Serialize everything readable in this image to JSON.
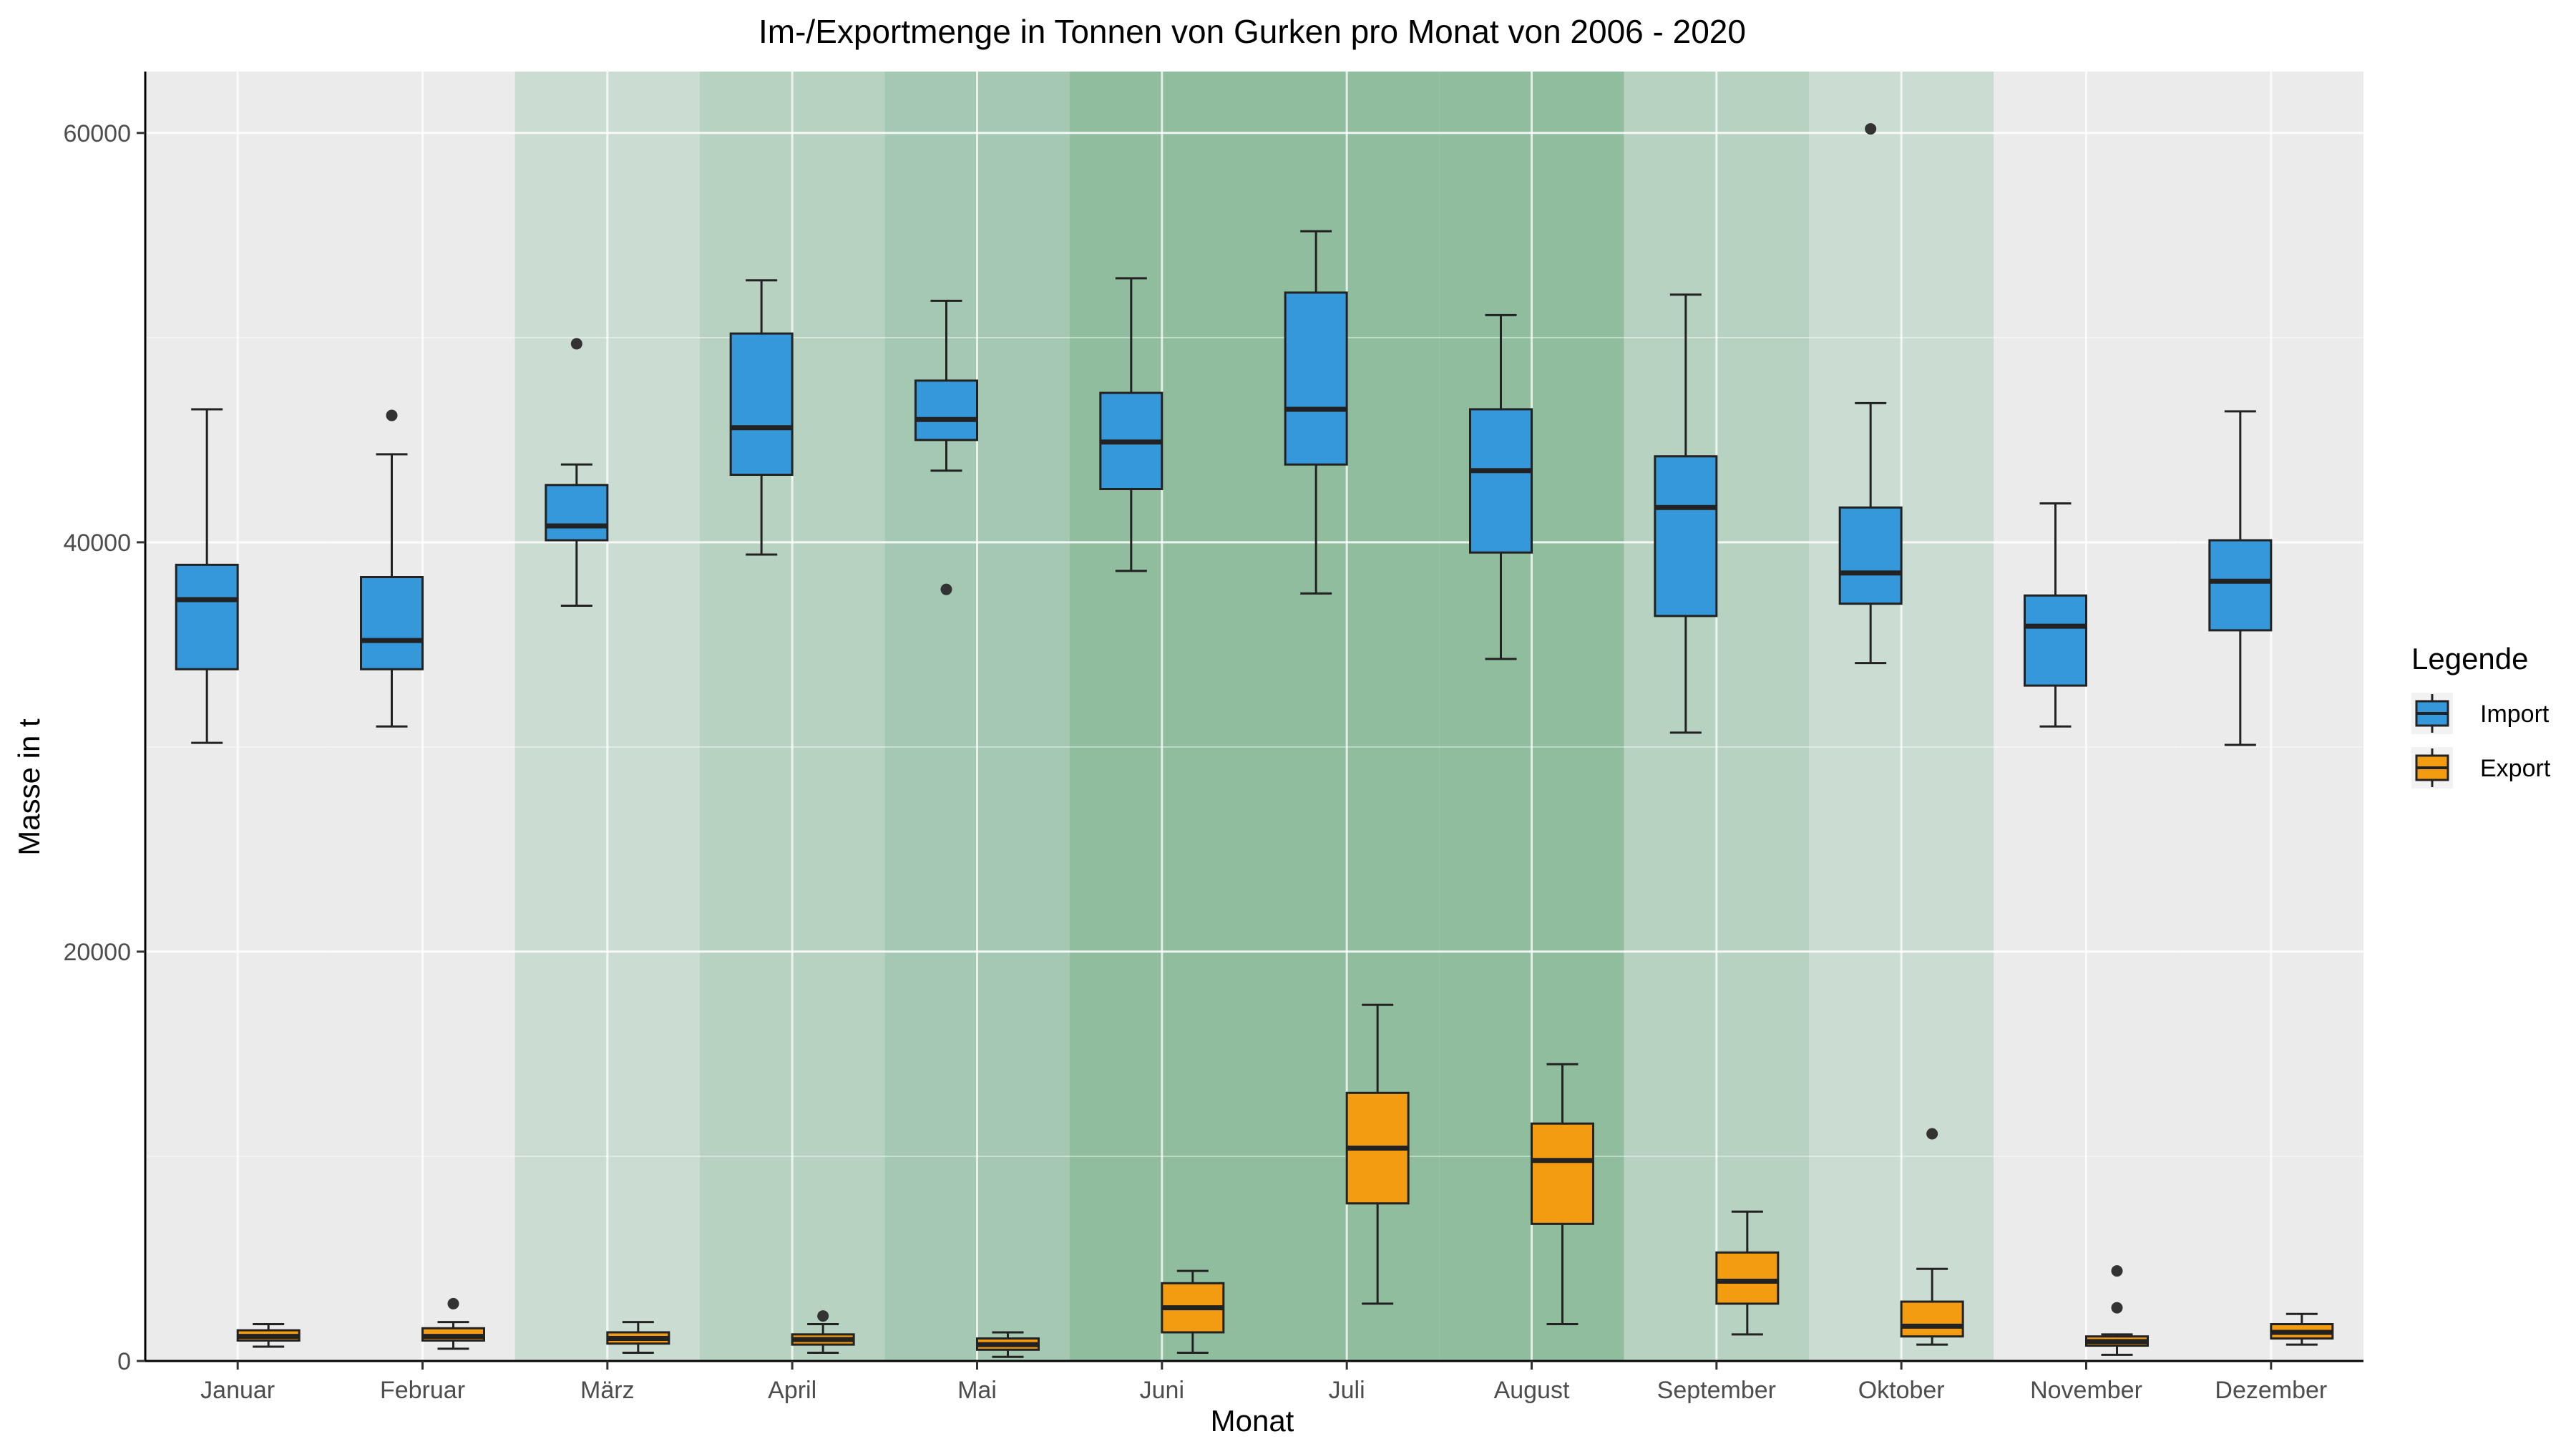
{
  "chart_data": {
    "type": "boxplot",
    "title": "Im-/Exportmenge in Tonnen von Gurken pro Monat von 2006 - 2020",
    "xlabel": "Monat",
    "ylabel": "Masse in t",
    "ylim": [
      0,
      63000
    ],
    "yticks": [
      0,
      20000,
      40000,
      60000
    ],
    "grid": true,
    "legend": {
      "title": "Legende",
      "placement": "right"
    },
    "categories": [
      "Januar",
      "Februar",
      "März",
      "April",
      "Mai",
      "Juni",
      "Juli",
      "August",
      "September",
      "Oktober",
      "November",
      "Dezember"
    ],
    "month_shading": [
      0,
      0,
      1,
      2,
      3,
      4,
      4,
      4,
      2,
      1,
      0,
      0
    ],
    "series": [
      {
        "name": "Import",
        "color": "#3498db",
        "boxes": [
          {
            "min": 30200,
            "q1": 33800,
            "median": 37200,
            "q3": 38900,
            "max": 46500,
            "outliers": []
          },
          {
            "min": 31000,
            "q1": 33800,
            "median": 35200,
            "q3": 38300,
            "max": 44300,
            "outliers": [
              46200
            ]
          },
          {
            "min": 36900,
            "q1": 40100,
            "median": 40800,
            "q3": 42800,
            "max": 43800,
            "outliers": [
              49700
            ]
          },
          {
            "min": 39400,
            "q1": 43300,
            "median": 45600,
            "q3": 50200,
            "max": 52800,
            "outliers": []
          },
          {
            "min": 43500,
            "q1": 45000,
            "median": 46000,
            "q3": 47900,
            "max": 51800,
            "outliers": [
              37700
            ]
          },
          {
            "min": 38600,
            "q1": 42600,
            "median": 44900,
            "q3": 47300,
            "max": 52900,
            "outliers": []
          },
          {
            "min": 37500,
            "q1": 43800,
            "median": 46500,
            "q3": 52200,
            "max": 55200,
            "outliers": []
          },
          {
            "min": 34300,
            "q1": 39500,
            "median": 43500,
            "q3": 46500,
            "max": 51100,
            "outliers": []
          },
          {
            "min": 30700,
            "q1": 36400,
            "median": 41700,
            "q3": 44200,
            "max": 52100,
            "outliers": []
          },
          {
            "min": 34100,
            "q1": 37000,
            "median": 38500,
            "q3": 41700,
            "max": 46800,
            "outliers": [
              60200
            ]
          },
          {
            "min": 31000,
            "q1": 33000,
            "median": 35900,
            "q3": 37400,
            "max": 41900,
            "outliers": []
          },
          {
            "min": 30100,
            "q1": 35700,
            "median": 38100,
            "q3": 40100,
            "max": 46400,
            "outliers": []
          }
        ]
      },
      {
        "name": "Export",
        "color": "#f39c12",
        "boxes": [
          {
            "min": 700,
            "q1": 1000,
            "median": 1200,
            "q3": 1500,
            "max": 1800,
            "outliers": []
          },
          {
            "min": 600,
            "q1": 1000,
            "median": 1200,
            "q3": 1600,
            "max": 1900,
            "outliers": [
              2800
            ]
          },
          {
            "min": 400,
            "q1": 850,
            "median": 1100,
            "q3": 1400,
            "max": 1900,
            "outliers": []
          },
          {
            "min": 400,
            "q1": 800,
            "median": 1050,
            "q3": 1300,
            "max": 1800,
            "outliers": [
              2200
            ]
          },
          {
            "min": 200,
            "q1": 550,
            "median": 800,
            "q3": 1100,
            "max": 1400,
            "outliers": []
          },
          {
            "min": 400,
            "q1": 1400,
            "median": 2600,
            "q3": 3800,
            "max": 4400,
            "outliers": []
          },
          {
            "min": 2800,
            "q1": 7700,
            "median": 10400,
            "q3": 13100,
            "max": 17400,
            "outliers": []
          },
          {
            "min": 1800,
            "q1": 6700,
            "median": 9800,
            "q3": 11600,
            "max": 14500,
            "outliers": []
          },
          {
            "min": 1300,
            "q1": 2800,
            "median": 3900,
            "q3": 5300,
            "max": 7300,
            "outliers": []
          },
          {
            "min": 800,
            "q1": 1200,
            "median": 1700,
            "q3": 2900,
            "max": 4500,
            "outliers": [
              11100
            ]
          },
          {
            "min": 300,
            "q1": 750,
            "median": 950,
            "q3": 1200,
            "max": 1300,
            "outliers": [
              2600,
              4400
            ]
          },
          {
            "min": 800,
            "q1": 1100,
            "median": 1400,
            "q3": 1800,
            "max": 2300,
            "outliers": []
          }
        ]
      }
    ]
  }
}
